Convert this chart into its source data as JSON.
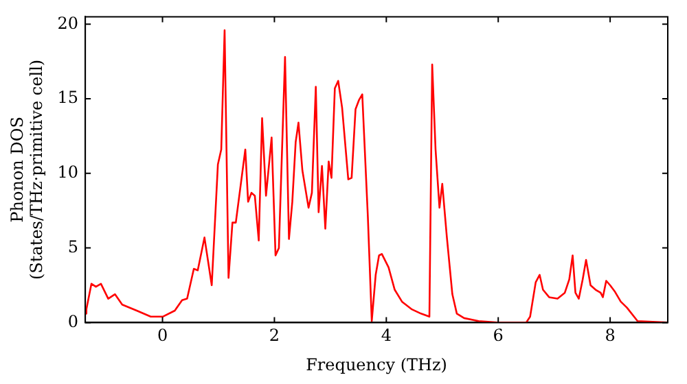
{
  "chart_data": {
    "type": "line",
    "xlabel": "Frequency (THz)",
    "ylabel": "Phonon DOS\n(States/THz·primitive cell)",
    "xlim": [
      -1.38,
      9.03
    ],
    "ylim": [
      0,
      20.5
    ],
    "xticks": [
      0,
      2,
      4,
      6,
      8
    ],
    "yticks": [
      0,
      5,
      10,
      15,
      20
    ],
    "grid": false,
    "legend": false,
    "marker": "none",
    "line_style": "solid",
    "series": [
      {
        "color": "#ff0000",
        "x": [
          -1.38,
          -1.36,
          -1.27,
          -1.19,
          -1.1,
          -0.97,
          -0.85,
          -0.72,
          -0.46,
          -0.21,
          0.01,
          0.22,
          0.35,
          0.44,
          0.56,
          0.63,
          0.75,
          0.88,
          0.99,
          1.05,
          1.11,
          1.18,
          1.25,
          1.31,
          1.48,
          1.53,
          1.59,
          1.65,
          1.72,
          1.78,
          1.85,
          1.95,
          2.02,
          2.08,
          2.19,
          2.26,
          2.32,
          2.38,
          2.43,
          2.5,
          2.61,
          2.67,
          2.74,
          2.79,
          2.85,
          2.91,
          2.97,
          3.02,
          3.08,
          3.14,
          3.21,
          3.32,
          3.38,
          3.45,
          3.51,
          3.57,
          3.67,
          3.74,
          3.81,
          3.87,
          3.92,
          4.04,
          4.15,
          4.28,
          4.45,
          4.62,
          4.77,
          4.82,
          4.88,
          4.95,
          5.0,
          5.08,
          5.18,
          5.26,
          5.39,
          5.65,
          5.99,
          6.5,
          6.57,
          6.67,
          6.74,
          6.8,
          6.91,
          7.06,
          7.19,
          7.27,
          7.33,
          7.38,
          7.44,
          7.51,
          7.57,
          7.65,
          7.74,
          7.83,
          7.87,
          7.93,
          8.0,
          8.08,
          8.19,
          8.3,
          8.49,
          9.03
        ],
        "values": [
          0.6,
          0.9,
          2.6,
          2.4,
          2.6,
          1.6,
          1.9,
          1.2,
          0.8,
          0.4,
          0.4,
          0.8,
          1.5,
          1.6,
          3.6,
          3.5,
          5.7,
          2.5,
          10.6,
          11.6,
          19.6,
          3.0,
          6.7,
          6.7,
          11.6,
          8.1,
          8.7,
          8.5,
          5.5,
          13.7,
          8.5,
          12.4,
          4.5,
          5.0,
          17.8,
          5.6,
          8.1,
          12.1,
          13.4,
          10.2,
          7.7,
          8.7,
          15.8,
          7.4,
          10.5,
          6.3,
          10.8,
          9.7,
          15.7,
          16.2,
          14.4,
          9.6,
          9.7,
          14.3,
          14.9,
          15.3,
          7.1,
          0.1,
          3.2,
          4.5,
          4.6,
          3.7,
          2.2,
          1.4,
          0.9,
          0.6,
          0.4,
          17.3,
          11.6,
          7.7,
          9.3,
          5.8,
          1.9,
          0.6,
          0.3,
          0.1,
          0,
          0,
          0.4,
          2.7,
          3.2,
          2.2,
          1.7,
          1.6,
          2.0,
          2.9,
          4.5,
          2.0,
          1.6,
          2.9,
          4.2,
          2.5,
          2.2,
          2.0,
          1.7,
          2.8,
          2.5,
          2.1,
          1.4,
          1.0,
          0.1,
          0
        ]
      }
    ]
  }
}
